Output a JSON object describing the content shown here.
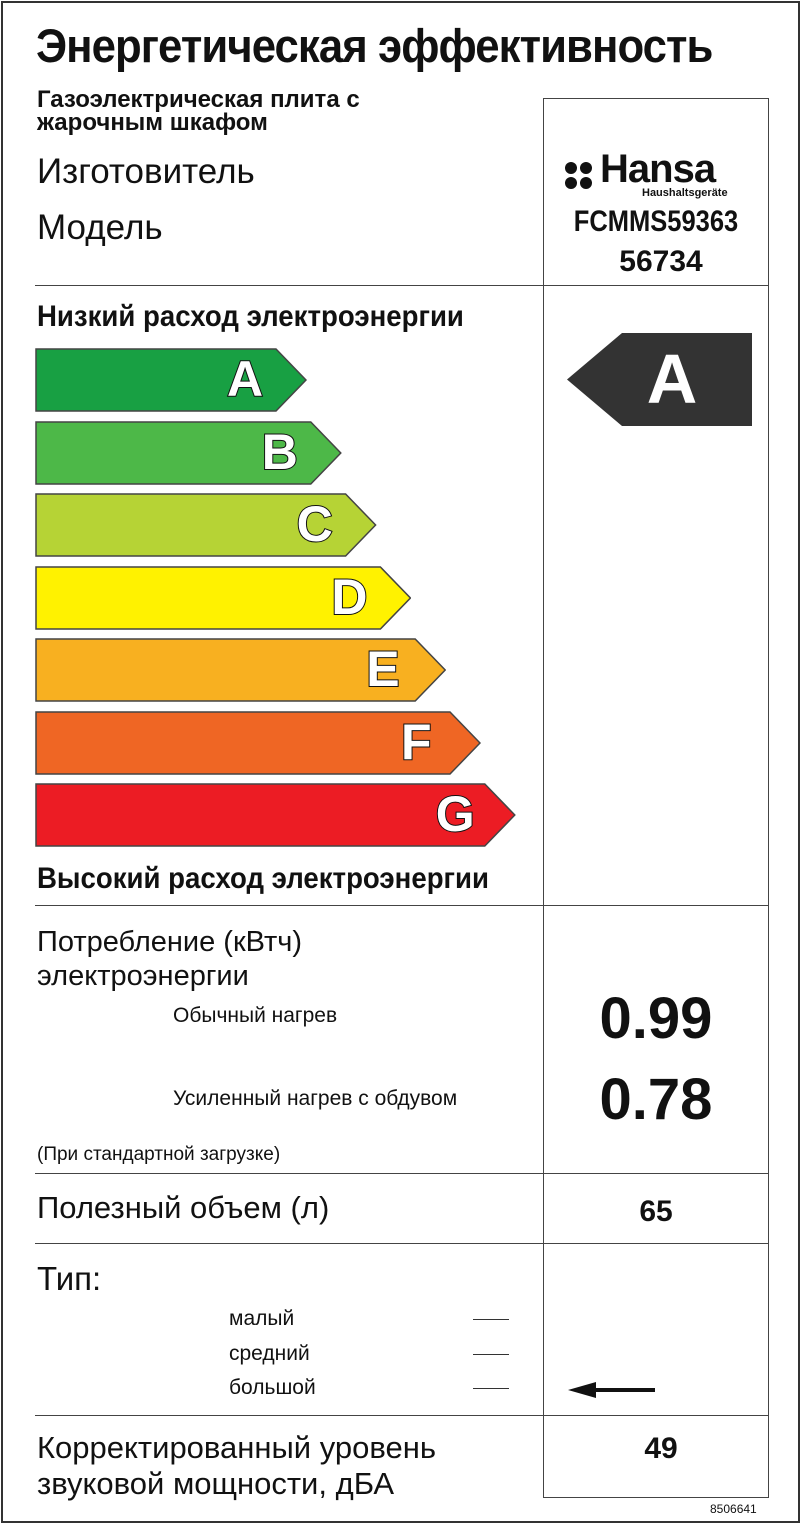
{
  "title": "Энергетическая эффективность",
  "subtitle_line1": "Газоэлектрическая плита с",
  "subtitle_line2": "жарочным шкафом",
  "manufacturer_label": "Изготовитель",
  "model_label": "Модель",
  "brand": {
    "name": "Hansa",
    "tagline": "Haushaltsgeräte"
  },
  "model": "FCMMS59363",
  "model_code": "56734",
  "scale": {
    "top_label": "Низкий расход электроэнергии",
    "bottom_label": "Высокий расход электроэнергии",
    "classes": [
      {
        "letter": "A",
        "color": "#18a043"
      },
      {
        "letter": "B",
        "color": "#4db848"
      },
      {
        "letter": "C",
        "color": "#b6d335"
      },
      {
        "letter": "D",
        "color": "#fff200"
      },
      {
        "letter": "E",
        "color": "#f8b020"
      },
      {
        "letter": "F",
        "color": "#ef6624"
      },
      {
        "letter": "G",
        "color": "#ec1c24"
      }
    ]
  },
  "rating": {
    "letter": "A",
    "color": "#333333"
  },
  "consumption": {
    "label_line1": "Потребление  (кВтч)",
    "label_line2": "электроэнергии",
    "normal_label": "Обычный нагрев",
    "normal_value": "0.99",
    "fan_label": "Усиленный нагрев с обдувом",
    "fan_value": "0.78",
    "note": "(При стандартной загрузке)"
  },
  "volume": {
    "label": "Полезный объем  (л)",
    "value": "65"
  },
  "type": {
    "label": "Тип:",
    "options": [
      "малый",
      "средний",
      "большой"
    ],
    "selected": "большой"
  },
  "noise": {
    "label_line1": "Корректированный уровень",
    "label_line2": "звуковой мощности, дБА",
    "value": "49"
  },
  "code": "8506641"
}
